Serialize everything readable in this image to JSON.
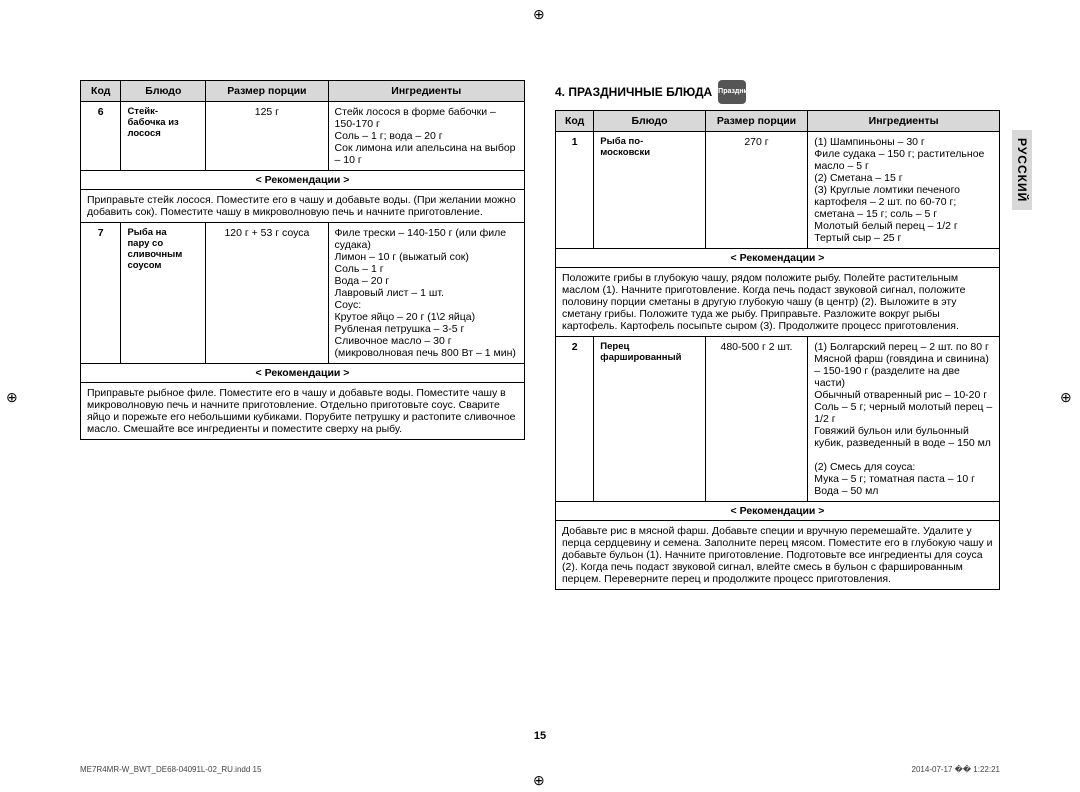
{
  "side_tab": "РУССКИЙ",
  "page_number": "15",
  "footer_left": "ME7R4MR-W_BWT_DE68-04091L-02_RU.indd   15",
  "footer_right": "2014-07-17   �� 1:22:21",
  "crop_glyph": "⊕",
  "left_table": {
    "headers": {
      "code": "Код",
      "dish": "Блюдо",
      "portion": "Размер порции",
      "ing": "Ингредиенты"
    },
    "rec_label": "< Рекомендации >",
    "rows": [
      {
        "code": "6",
        "dish_lines": [
          "Стейк-",
          "бабочка из",
          "лосося"
        ],
        "portion": "125 г",
        "ingredients": "Стейк лосося в форме бабочки – 150-170 г\nСоль – 1 г; вода – 20 г\nСок лимона или апельсина на выбор – 10 г",
        "rec": "Приправьте стейк лосося. Поместите его в чашу и добавьте воды. (При желании можно добавить сок). Поместите чашу в микроволновую печь и начните приготовление."
      },
      {
        "code": "7",
        "dish_lines": [
          "Рыба на",
          "пару со",
          "сливочным",
          "соусом"
        ],
        "portion": "120 г + 53 г соуса",
        "ingredients": "Филе трески – 140-150 г (или филе судака)\nЛимон – 10 г (выжатый сок)\nСоль – 1 г\nВода – 20 г\nЛавровый лист – 1 шт.\nСоус:\nКрутое яйцо – 20 г (1\\2 яйца)\nРубленая петрушка – 3-5 г\nСливочное масло – 30 г (микроволновая печь 800 Вт – 1 мин)",
        "rec": "Приправьте рыбное филе. Поместите его в чашу и добавьте воды. Поместите чашу в микроволновую печь и начните приготовление. Отдельно приготовьте соус. Сварите яйцо и порежьте его небольшими кубиками. Порубите петрушку и растопите сливочное масло. Смешайте все ингредиенты и поместите сверху на рыбу."
      }
    ]
  },
  "right_section": {
    "title": "4. ПРАЗДНИЧНЫЕ БЛЮДА",
    "icon_label": "Праздник",
    "headers": {
      "code": "Код",
      "dish": "Блюдо",
      "portion": "Размер порции",
      "ing": "Ингредиенты"
    },
    "rec_label": "< Рекомендации >",
    "rows": [
      {
        "code": "1",
        "dish_lines": [
          "Рыба по-",
          "московски"
        ],
        "portion": "270 г",
        "ingredients": "(1) Шампиньоны – 30 г\nФиле судака – 150 г; растительное масло – 5 г\n(2) Сметана – 15 г\n(3) Круглые ломтики печеного картофеля – 2 шт. по 60-70 г; сметана – 15 г; соль – 5 г\nМолотый белый перец – 1/2 г\nТертый сыр – 25 г",
        "rec": "Положите грибы в глубокую чашу, рядом положите рыбу. Полейте растительным маслом (1). Начните приготовление. Когда печь подаст звуковой сигнал, положите половину порции сметаны в другую глубокую чашу (в центр) (2). Выложите в эту сметану грибы. Положите туда же рыбу. Приправьте. Разложите вокруг рыбы картофель. Картофель посыпьте сыром (3). Продолжите процесс приготовления."
      },
      {
        "code": "2",
        "dish_lines": [
          "Перец",
          "фаршированный"
        ],
        "portion": "480-500 г 2 шт.",
        "ingredients": "(1) Болгарский перец – 2 шт. по 80 г\nМясной фарш (говядина и свинина) – 150-190 г (разделите на две части)\nОбычный отваренный рис – 10-20 г\nСоль – 5 г; черный молотый перец – 1/2 г\nГовяжий бульон или бульонный кубик, разведенный в воде – 150 мл\n\n(2) Смесь для соуса:\nМука – 5 г; томатная паста – 10 г\nВода – 50 мл",
        "rec": "Добавьте рис в мясной фарш. Добавьте специи и вручную перемешайте. Удалите у перца сердцевину и семена. Заполните перец мясом. Поместите его в глубокую чашу и добавьте бульон (1). Начните приготовление. Подготовьте все ингредиенты для соуса (2). Когда печь подаст звуковой сигнал, влейте смесь в бульон с фаршированным перцем. Переверните перец и продолжите процесс приготовления."
      }
    ]
  }
}
